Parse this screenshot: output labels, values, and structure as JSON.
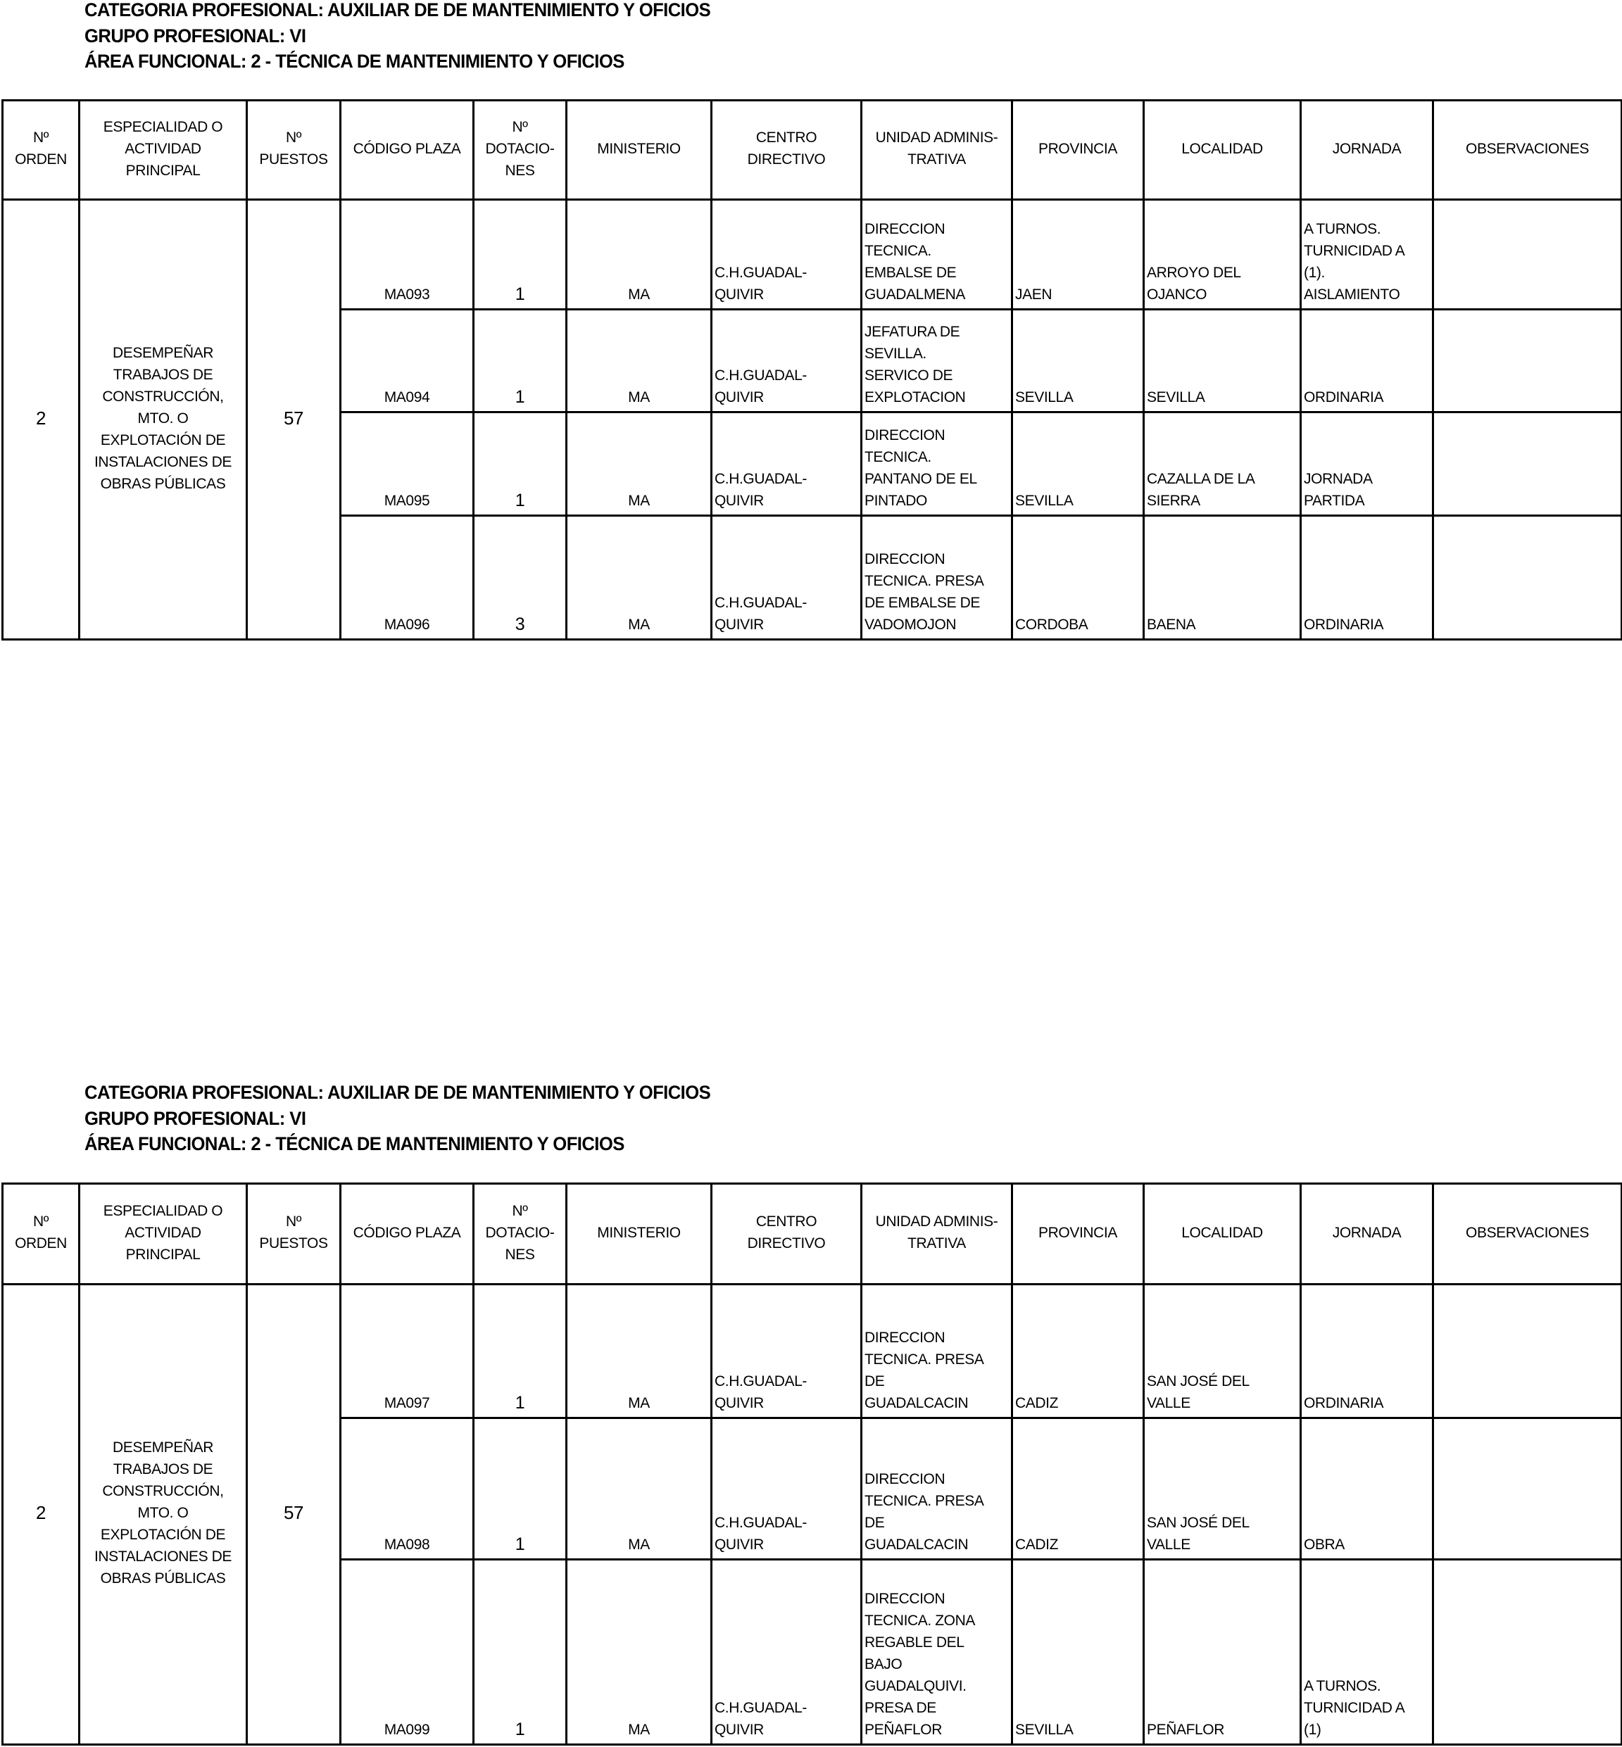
{
  "sections": [
    {
      "titles": [
        "CATEGORIA PROFESIONAL: AUXILIAR DE DE MANTENIMIENTO Y OFICIOS",
        "GRUPO PROFESIONAL:  VI",
        "ÁREA FUNCIONAL:  2 - TÉCNICA DE MANTENIMIENTO Y OFICIOS"
      ],
      "headers": [
        "Nº\nORDEN",
        "ESPECIALIDAD O\nACTIVIDAD\nPRINCIPAL",
        "Nº\nPUESTOS",
        "CÓDIGO PLAZA",
        "Nº\nDOTACIO-\nNES",
        "MINISTERIO",
        "CENTRO\nDIRECTIVO",
        "UNIDAD ADMINIS-\nTRATIVA",
        "PROVINCIA",
        "LOCALIDAD",
        "JORNADA",
        "OBSERVACIONES"
      ],
      "group": {
        "orden": "2",
        "especialidad": "DESEMPEÑAR\nTRABAJOS DE\nCONSTRUCCIÓN,\nMTO. O\nEXPLOTACIÓN DE\nINSTALACIONES DE\nOBRAS PÚBLICAS",
        "puestos": "57"
      },
      "rows": [
        {
          "codigo": "MA093",
          "dotaciones": "1",
          "ministerio": "MA",
          "centro": "C.H.GUADAL-\nQUIVIR",
          "unidad": "DIRECCION\nTECNICA.\nEMBALSE DE\nGUADALMENA",
          "provincia": "JAEN",
          "localidad": "ARROYO DEL\nOJANCO",
          "jornada": "A TURNOS.\nTURNICIDAD A\n(1).\nAISLAMIENTO",
          "observaciones": ""
        },
        {
          "codigo": "MA094",
          "dotaciones": "1",
          "ministerio": "MA",
          "centro": "C.H.GUADAL-\nQUIVIR",
          "unidad": "JEFATURA DE\nSEVILLA.\nSERVICO DE\nEXPLOTACION",
          "provincia": "SEVILLA",
          "localidad": "SEVILLA",
          "jornada": "ORDINARIA",
          "observaciones": ""
        },
        {
          "codigo": "MA095",
          "dotaciones": "1",
          "ministerio": "MA",
          "centro": "C.H.GUADAL-\nQUIVIR",
          "unidad": "DIRECCION\nTECNICA.\nPANTANO DE EL\nPINTADO",
          "provincia": "SEVILLA",
          "localidad": "CAZALLA DE LA\nSIERRA",
          "jornada": "JORNADA\nPARTIDA",
          "observaciones": ""
        },
        {
          "codigo": "MA096",
          "dotaciones": "3",
          "ministerio": "MA",
          "centro": "C.H.GUADAL-\nQUIVIR",
          "unidad": "DIRECCION\nTECNICA. PRESA\nDE EMBALSE DE\nVADOMOJON",
          "provincia": "CORDOBA",
          "localidad": "BAENA",
          "jornada": "ORDINARIA",
          "observaciones": ""
        }
      ]
    },
    {
      "titles": [
        "CATEGORIA PROFESIONAL: AUXILIAR DE DE MANTENIMIENTO Y OFICIOS",
        "GRUPO PROFESIONAL:  VI",
        "ÁREA FUNCIONAL:  2 - TÉCNICA DE MANTENIMIENTO Y OFICIOS"
      ],
      "headers": [
        "Nº\nORDEN",
        "ESPECIALIDAD O\nACTIVIDAD\nPRINCIPAL",
        "Nº\nPUESTOS",
        "CÓDIGO PLAZA",
        "Nº\nDOTACIO-\nNES",
        "MINISTERIO",
        "CENTRO\nDIRECTIVO",
        "UNIDAD ADMINIS-\nTRATIVA",
        "PROVINCIA",
        "LOCALIDAD",
        "JORNADA",
        "OBSERVACIONES"
      ],
      "group": {
        "orden": "2",
        "especialidad": "DESEMPEÑAR\nTRABAJOS DE\nCONSTRUCCIÓN,\nMTO. O\nEXPLOTACIÓN DE\nINSTALACIONES DE\nOBRAS PÚBLICAS",
        "puestos": "57"
      },
      "rows": [
        {
          "codigo": "MA097",
          "dotaciones": "1",
          "ministerio": "MA",
          "centro": "C.H.GUADAL-\nQUIVIR",
          "unidad": "DIRECCION\nTECNICA. PRESA\nDE\nGUADALCACIN",
          "provincia": "CADIZ",
          "localidad": "SAN JOSÉ DEL\nVALLE",
          "jornada": "ORDINARIA",
          "observaciones": ""
        },
        {
          "codigo": "MA098",
          "dotaciones": "1",
          "ministerio": "MA",
          "centro": "C.H.GUADAL-\nQUIVIR",
          "unidad": "DIRECCION\nTECNICA. PRESA\nDE\nGUADALCACIN",
          "provincia": "CADIZ",
          "localidad": "SAN JOSÉ DEL\nVALLE",
          "jornada": "OBRA",
          "observaciones": ""
        },
        {
          "codigo": "MA099",
          "dotaciones": "1",
          "ministerio": "MA",
          "centro": "C.H.GUADAL-\nQUIVIR",
          "unidad": "DIRECCION\nTECNICA. ZONA\nREGABLE DEL\nBAJO\nGUADALQUIVI.\nPRESA DE\nPEÑAFLOR",
          "provincia": "SEVILLA",
          "localidad": "PEÑAFLOR",
          "jornada": "A TURNOS.\nTURNICIDAD A\n(1)",
          "observaciones": ""
        }
      ]
    }
  ]
}
